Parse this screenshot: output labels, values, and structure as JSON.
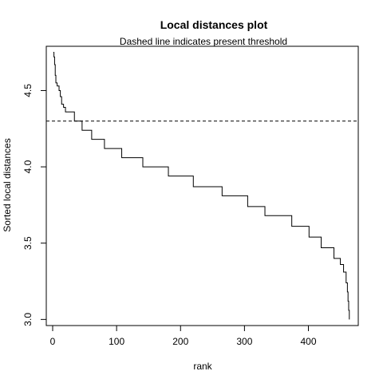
{
  "chart_data": {
    "type": "line",
    "title": "Local distances plot",
    "subtitle": "Dashed line indicates present threshold",
    "xlabel": "rank",
    "ylabel": "Sorted local distances",
    "xlim": [
      -10,
      478
    ],
    "ylim": [
      2.96,
      4.79
    ],
    "x_ticks": [
      0,
      100,
      200,
      300,
      400
    ],
    "x_tick_labels": [
      "0",
      "100",
      "200",
      "300",
      "400"
    ],
    "y_ticks": [
      3.0,
      3.5,
      4.0,
      4.5
    ],
    "y_tick_labels": [
      "3.0",
      "3.5",
      "4.0",
      "4.5"
    ],
    "threshold": 4.3,
    "grid": false,
    "step_points": [
      [
        1,
        4.75
      ],
      [
        2,
        4.72
      ],
      [
        3,
        4.67
      ],
      [
        4,
        4.6
      ],
      [
        5,
        4.55
      ],
      [
        7,
        4.53
      ],
      [
        10,
        4.5
      ],
      [
        12,
        4.46
      ],
      [
        14,
        4.41
      ],
      [
        17,
        4.39
      ],
      [
        20,
        4.36
      ],
      [
        34,
        4.3
      ],
      [
        46,
        4.24
      ],
      [
        61,
        4.18
      ],
      [
        81,
        4.12
      ],
      [
        108,
        4.06
      ],
      [
        141,
        4.0
      ],
      [
        181,
        3.94
      ],
      [
        220,
        3.87
      ],
      [
        265,
        3.81
      ],
      [
        305,
        3.74
      ],
      [
        332,
        3.68
      ],
      [
        374,
        3.61
      ],
      [
        401,
        3.54
      ],
      [
        420,
        3.47
      ],
      [
        440,
        3.4
      ],
      [
        450,
        3.36
      ],
      [
        455,
        3.31
      ],
      [
        459,
        3.24
      ],
      [
        461,
        3.18
      ],
      [
        462,
        3.12
      ],
      [
        463,
        3.06
      ],
      [
        464,
        3.0
      ]
    ]
  }
}
